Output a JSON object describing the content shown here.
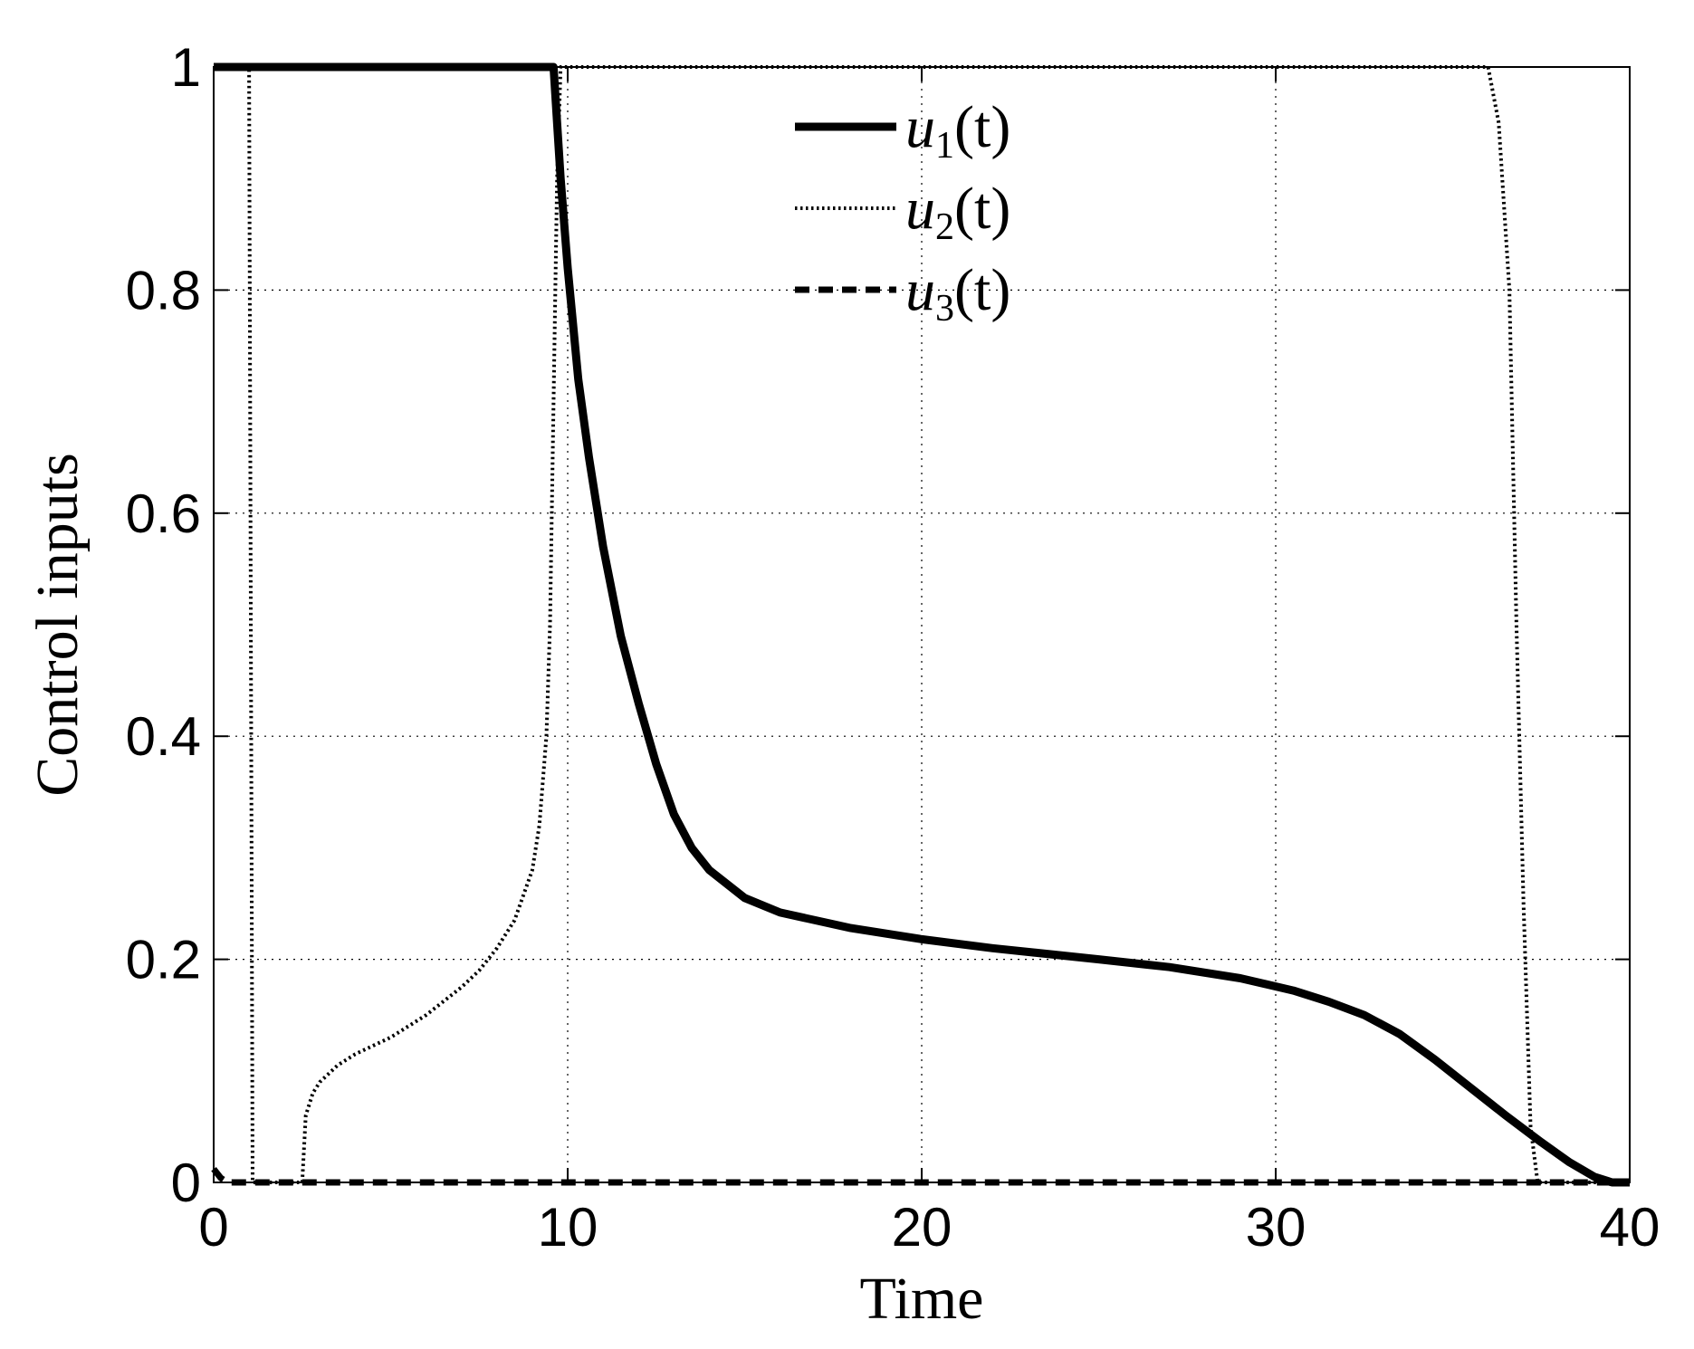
{
  "chart_data": {
    "type": "line",
    "title": "",
    "xlabel": "Time",
    "ylabel": "Control inputs",
    "xlim": [
      0,
      40
    ],
    "ylim": [
      0,
      1
    ],
    "xticks": [
      "0",
      "10",
      "20",
      "30",
      "40"
    ],
    "yticks": [
      "0",
      "0.2",
      "0.4",
      "0.6",
      "0.8",
      "1"
    ],
    "grid": true,
    "legend_position": "top-center",
    "series": [
      {
        "name": "u1(t)",
        "label_main": "u",
        "label_sub": "1",
        "label_arg": "(t)",
        "style": "solid",
        "color": "#000000",
        "points": [
          [
            0,
            1
          ],
          [
            9.6,
            1
          ],
          [
            9.8,
            0.9
          ],
          [
            10.0,
            0.82
          ],
          [
            10.3,
            0.72
          ],
          [
            10.6,
            0.65
          ],
          [
            11.0,
            0.57
          ],
          [
            11.5,
            0.49
          ],
          [
            12.0,
            0.43
          ],
          [
            12.5,
            0.375
          ],
          [
            13.0,
            0.33
          ],
          [
            13.5,
            0.3
          ],
          [
            14.0,
            0.28
          ],
          [
            15.0,
            0.255
          ],
          [
            16.0,
            0.242
          ],
          [
            18.0,
            0.228
          ],
          [
            20.0,
            0.218
          ],
          [
            22.0,
            0.21
          ],
          [
            25.0,
            0.2
          ],
          [
            27.0,
            0.193
          ],
          [
            29.0,
            0.183
          ],
          [
            30.5,
            0.172
          ],
          [
            31.5,
            0.162
          ],
          [
            32.5,
            0.15
          ],
          [
            33.5,
            0.133
          ],
          [
            34.5,
            0.11
          ],
          [
            35.5,
            0.085
          ],
          [
            36.5,
            0.06
          ],
          [
            37.5,
            0.036
          ],
          [
            38.3,
            0.018
          ],
          [
            39.0,
            0.005
          ],
          [
            39.5,
            0
          ],
          [
            40,
            0
          ]
        ]
      },
      {
        "name": "u2(t)",
        "label_main": "u",
        "label_sub": "2",
        "label_arg": "(t)",
        "style": "dotted",
        "color": "#000000",
        "points": [
          [
            0,
            1
          ],
          [
            1.0,
            1
          ],
          [
            1.1,
            0
          ],
          [
            2.5,
            0
          ],
          [
            2.6,
            0.06
          ],
          [
            2.8,
            0.08
          ],
          [
            3.0,
            0.09
          ],
          [
            3.5,
            0.105
          ],
          [
            4.0,
            0.115
          ],
          [
            5.0,
            0.13
          ],
          [
            6.0,
            0.15
          ],
          [
            7.0,
            0.175
          ],
          [
            7.5,
            0.19
          ],
          [
            8.0,
            0.21
          ],
          [
            8.5,
            0.235
          ],
          [
            9.0,
            0.28
          ],
          [
            9.2,
            0.32
          ],
          [
            9.4,
            0.4
          ],
          [
            9.5,
            0.5
          ],
          [
            9.6,
            0.7
          ],
          [
            9.7,
            0.9
          ],
          [
            9.8,
            1
          ],
          [
            36.0,
            1
          ],
          [
            36.3,
            0.95
          ],
          [
            36.6,
            0.8
          ],
          [
            36.8,
            0.5
          ],
          [
            37.0,
            0.25
          ],
          [
            37.2,
            0.05
          ],
          [
            37.4,
            0
          ],
          [
            40,
            0
          ]
        ]
      },
      {
        "name": "u3(t)",
        "label_main": "u",
        "label_sub": "3",
        "label_arg": "(t)",
        "style": "dashed",
        "color": "#000000",
        "points": [
          [
            0,
            0.012
          ],
          [
            0.2,
            0.004
          ],
          [
            0.4,
            0
          ],
          [
            40,
            0
          ]
        ]
      }
    ]
  }
}
